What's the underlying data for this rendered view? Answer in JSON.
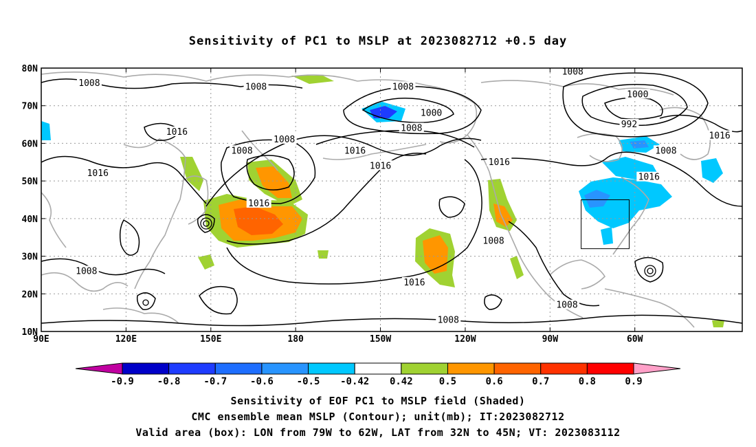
{
  "title": "Sensitivity of PC1 to MSLP at 2023082712 +0.5 day",
  "map": {
    "lat_ticks": [
      "80N",
      "70N",
      "60N",
      "50N",
      "40N",
      "30N",
      "20N",
      "10N"
    ],
    "lon_ticks": [
      "90E",
      "120E",
      "150E",
      "180",
      "150W",
      "120W",
      "90W",
      "60W"
    ],
    "extent": {
      "lon_min": 90,
      "lon_max": 338,
      "lat_min": 10,
      "lat_max": 80
    },
    "valid_box": {
      "lon_w": -79,
      "lon_e": -62,
      "lat_s": 32,
      "lat_n": 45
    },
    "contour_color": "#000000",
    "coast_color": "#aaaaaa",
    "contour_labels": [
      {
        "text": "1008",
        "lon": 107,
        "lat": 76
      },
      {
        "text": "1008",
        "lon": 166,
        "lat": 75
      },
      {
        "text": "1008",
        "lon": 218,
        "lat": 75
      },
      {
        "text": "1000",
        "lon": 228,
        "lat": 68
      },
      {
        "text": "1008",
        "lon": 221,
        "lat": 64
      },
      {
        "text": "1016",
        "lon": 138,
        "lat": 63
      },
      {
        "text": "1008",
        "lon": 176,
        "lat": 61
      },
      {
        "text": "1008",
        "lon": 161,
        "lat": 58
      },
      {
        "text": "1016",
        "lon": 201,
        "lat": 58
      },
      {
        "text": "1016",
        "lon": 210,
        "lat": 54
      },
      {
        "text": "1016",
        "lon": 252,
        "lat": 55
      },
      {
        "text": "1016",
        "lon": 110,
        "lat": 52
      },
      {
        "text": "1016",
        "lon": 167,
        "lat": 44
      },
      {
        "text": "1008",
        "lon": 106,
        "lat": 26
      },
      {
        "text": "1016",
        "lon": 222,
        "lat": 23
      },
      {
        "text": "1008",
        "lon": 234,
        "lat": 13
      },
      {
        "text": "1008",
        "lon": 276,
        "lat": 17
      },
      {
        "text": "1008",
        "lon": 250,
        "lat": 34
      },
      {
        "text": "1008",
        "lon": 278,
        "lat": 79
      },
      {
        "text": "1000",
        "lon": 301,
        "lat": 73
      },
      {
        "text": "992",
        "lon": 298,
        "lat": 65
      },
      {
        "text": "1008",
        "lon": 311,
        "lat": 58
      },
      {
        "text": "1016",
        "lon": 330,
        "lat": 62
      },
      {
        "text": "1016",
        "lon": 305,
        "lat": 51
      }
    ]
  },
  "colorbar": {
    "labels": [
      "-0.9",
      "-0.8",
      "-0.7",
      "-0.6",
      "-0.5",
      "-0.42",
      "0.42",
      "0.5",
      "0.6",
      "0.7",
      "0.8",
      "0.9"
    ],
    "colors": [
      "#c000a0",
      "#0000c8",
      "#1e3cff",
      "#1e6eff",
      "#2894ff",
      "#00c8ff",
      "#ffffff",
      "#a0d232",
      "#ff9600",
      "#ff6400",
      "#ff3200",
      "#ff0000",
      "#ffa0c8"
    ]
  },
  "captions": [
    "Sensitivity of EOF PC1 to MSLP field (Shaded)",
    "CMC ensemble mean MSLP (Contour); unit(mb); IT:2023082712",
    "Valid area (box): LON from 79W to 62W, LAT from 32N to 45N; VT: 2023083112"
  ]
}
